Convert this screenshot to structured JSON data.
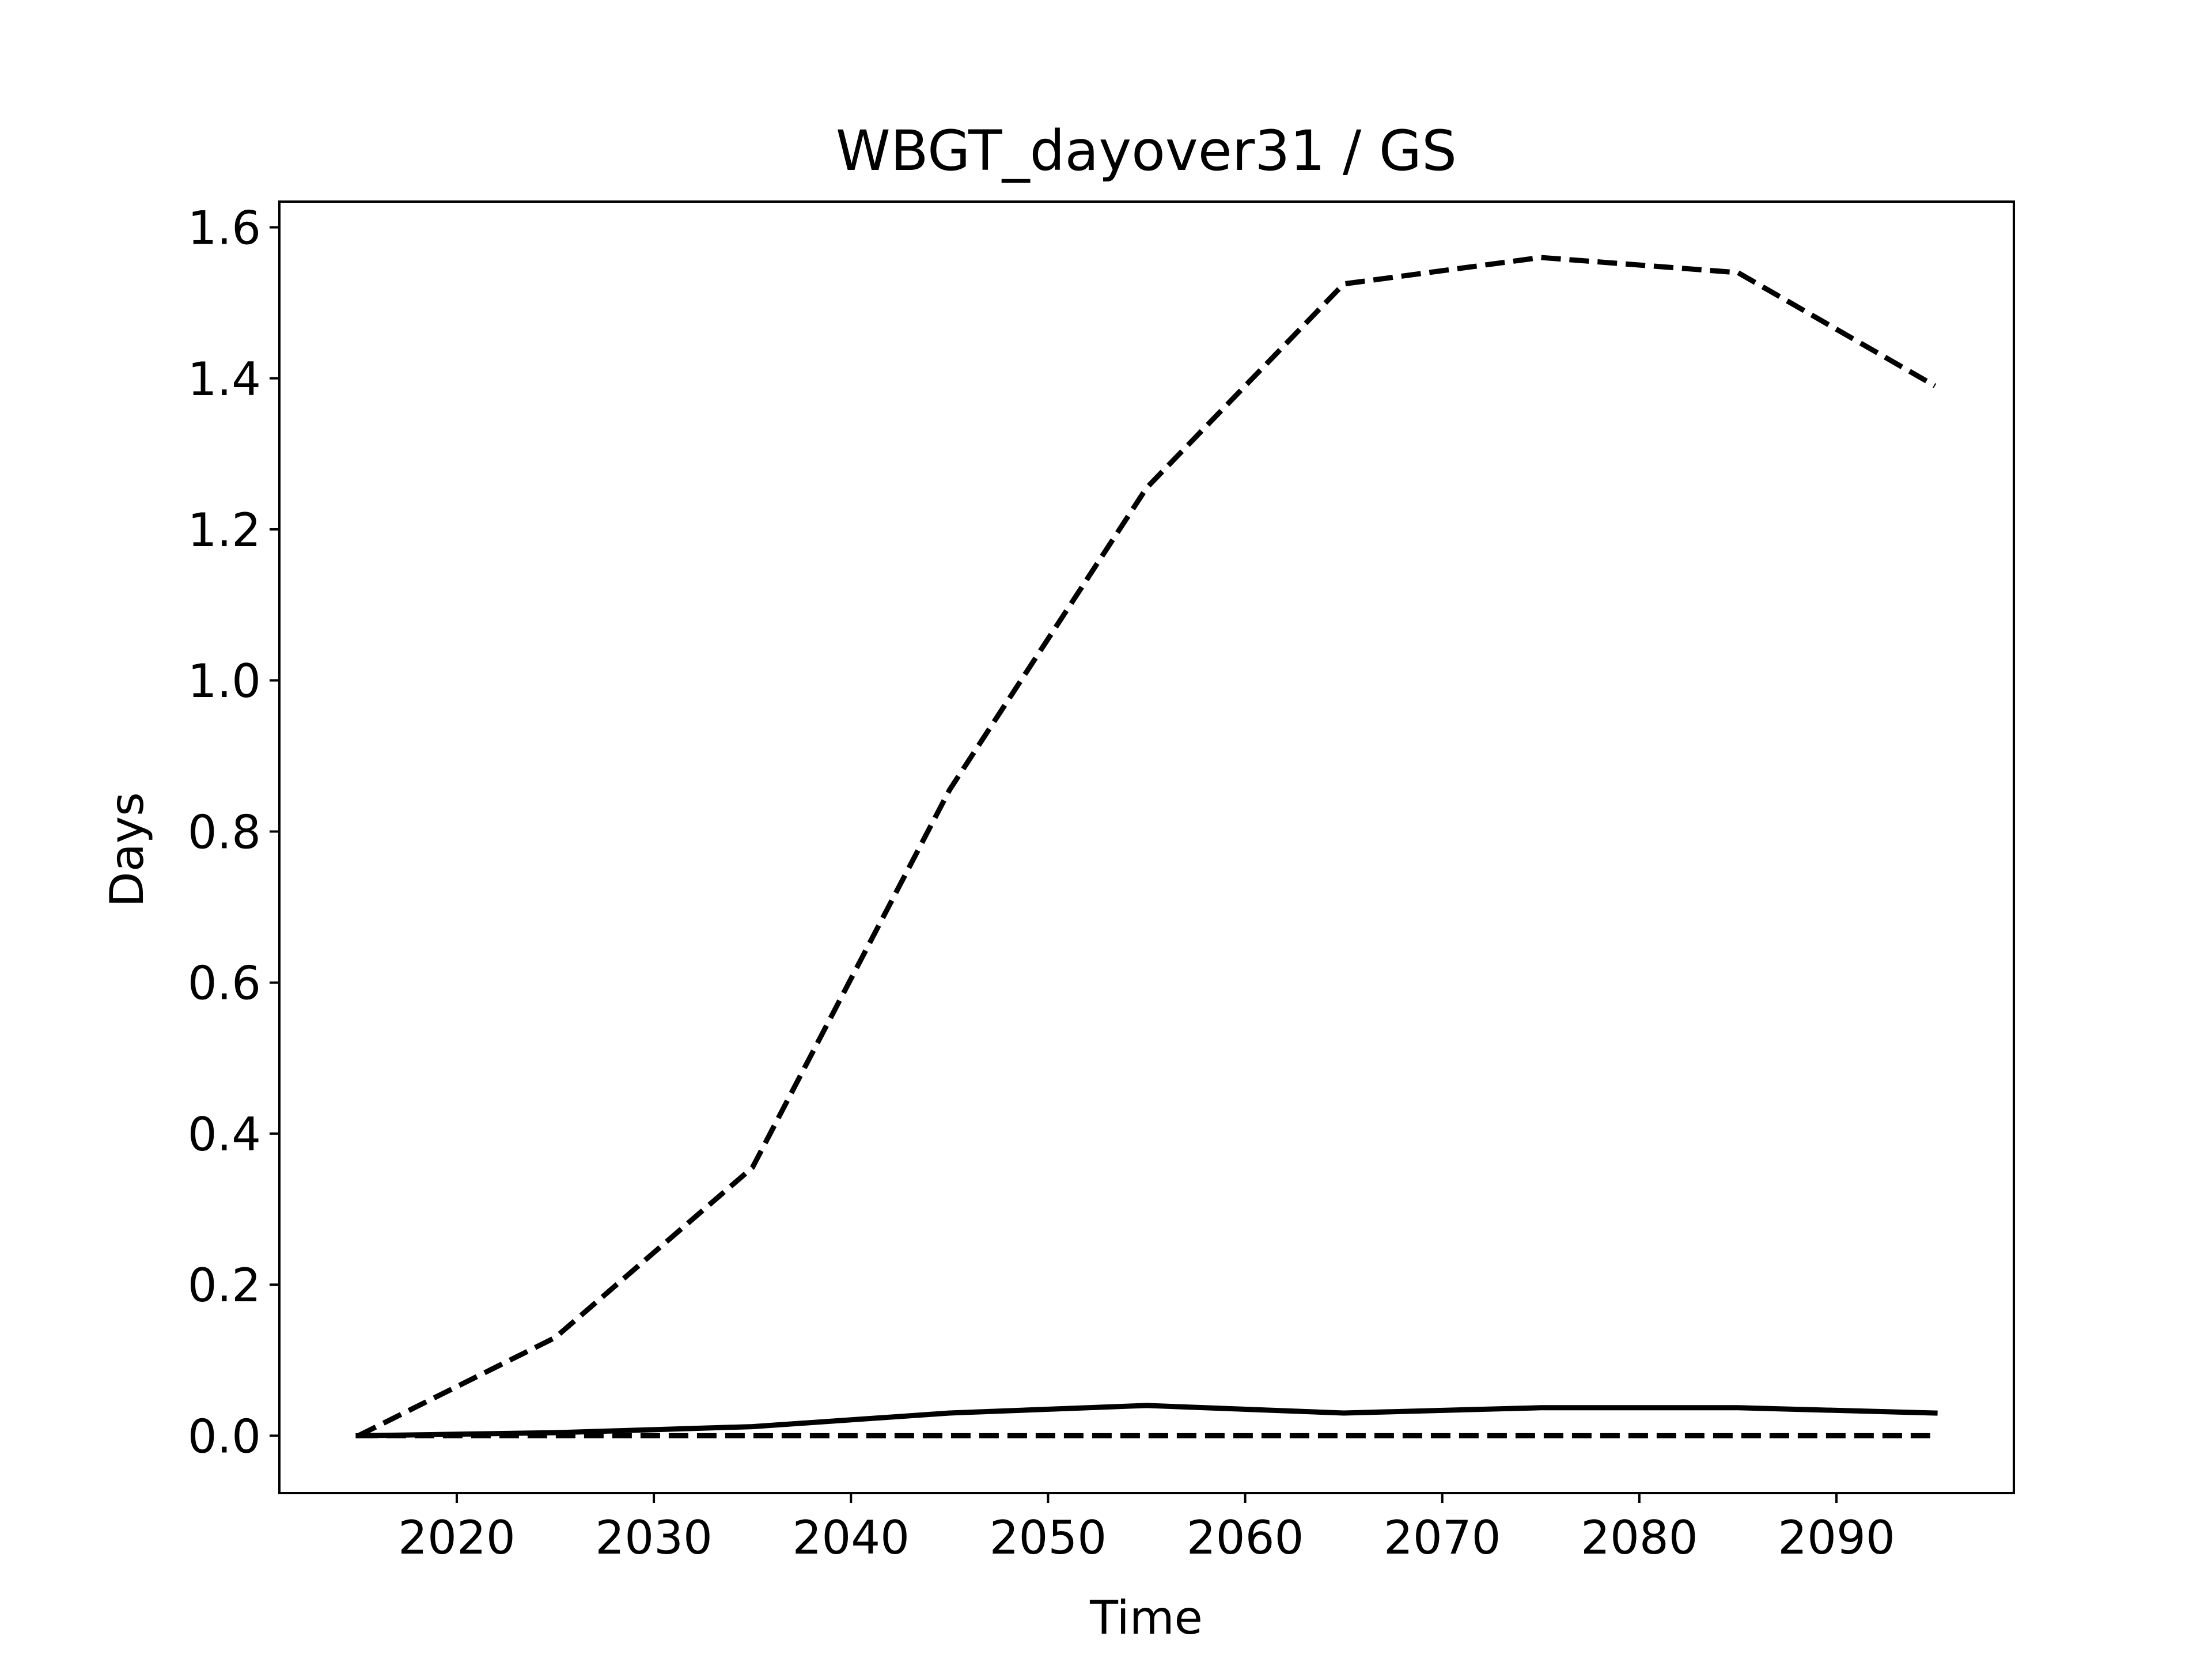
{
  "chart_data": {
    "type": "line",
    "title": "WBGT_dayover31 / GS",
    "xlabel": "Time",
    "ylabel": "Days",
    "xlim": [
      2011,
      2099
    ],
    "ylim": [
      -0.076,
      1.634
    ],
    "xticks": [
      2020,
      2030,
      2040,
      2050,
      2060,
      2070,
      2080,
      2090
    ],
    "yticks": [
      0.0,
      0.2,
      0.4,
      0.6,
      0.8,
      1.0,
      1.2,
      1.4,
      1.6
    ],
    "ytick_labels": [
      "0.0",
      "0.2",
      "0.4",
      "0.6",
      "0.8",
      "1.0",
      "1.2",
      "1.4",
      "1.6"
    ],
    "grid": false,
    "x": [
      2015,
      2025,
      2035,
      2045,
      2055,
      2065,
      2075,
      2085,
      2095
    ],
    "series": [
      {
        "style": "dashed",
        "color": "#000000",
        "values": [
          0.0,
          0.13,
          0.355,
          0.855,
          1.255,
          1.525,
          1.56,
          1.54,
          1.39
        ]
      },
      {
        "style": "solid",
        "color": "#000000",
        "values": [
          0.0,
          0.004,
          0.012,
          0.03,
          0.04,
          0.03,
          0.037,
          0.037,
          0.03
        ]
      },
      {
        "style": "dashed",
        "color": "#000000",
        "values": [
          0.0,
          0.0,
          0.0,
          0.0,
          0.0,
          0.0,
          0.0,
          0.0,
          0.0
        ]
      }
    ]
  }
}
